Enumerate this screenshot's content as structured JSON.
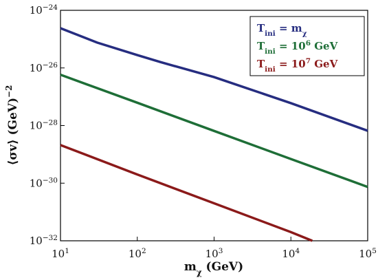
{
  "chart_data": {
    "type": "line",
    "log_x": true,
    "log_y": true,
    "grid": false,
    "legend": "upper right",
    "xlabel": "m_χ (GeV)",
    "ylabel": "⟨σv⟩ (GeV)^−2",
    "xlim": [
      10,
      100000
    ],
    "xticks": [
      {
        "value": 10,
        "label": "10^1"
      },
      {
        "value": 100,
        "label": "10^2"
      },
      {
        "value": 1000,
        "label": "10^3"
      },
      {
        "value": 10000,
        "label": "10^4"
      },
      {
        "value": 100000,
        "label": "10^5"
      }
    ],
    "ylim": [
      1e-32,
      1e-24
    ],
    "yticks": [
      {
        "value": 1e-32,
        "label": "10^−32"
      },
      {
        "value": 1e-30,
        "label": "10^−30"
      },
      {
        "value": 1e-28,
        "label": "10^−28"
      },
      {
        "value": 1e-26,
        "label": "10^−26"
      },
      {
        "value": 1e-24,
        "label": "10^−24"
      }
    ],
    "series": [
      {
        "name": "T_ini = m_χ",
        "color": "#262d80",
        "x": [
          10,
          30,
          100,
          200,
          1000,
          10000,
          100000
        ],
        "values": [
          2.4e-25,
          7.6e-26,
          2.8e-26,
          1.6e-26,
          4.8e-27,
          6e-28,
          6.6e-29
        ]
      },
      {
        "name": "T_ini = 10^6 GeV",
        "color": "#1e6e37",
        "x": [
          10,
          100,
          1000,
          10000,
          100000
        ],
        "values": [
          5.8e-27,
          6.2e-28,
          6.5e-29,
          6.9e-30,
          7.4e-31
        ]
      },
      {
        "name": "T_ini = 10^7 GeV",
        "color": "#8b1a1a",
        "x": [
          10,
          100,
          1000,
          10000,
          19000
        ],
        "values": [
          2.1e-29,
          2e-30,
          2e-31,
          2e-32,
          1e-32
        ]
      }
    ]
  }
}
